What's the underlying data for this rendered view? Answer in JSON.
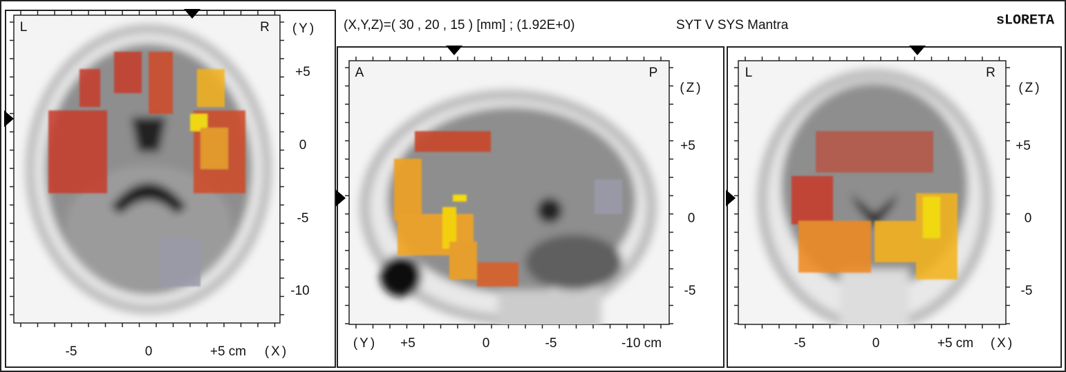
{
  "header": {
    "coordinates": "(X,Y,Z)=( 30 , 20 , 15 ) [mm] ; (1.92E+0)",
    "subject": "SYT V SYS Mantra",
    "logo": "sLORETA"
  },
  "panels": [
    {
      "orientation_left": "L",
      "orientation_right": "R",
      "vertical_axis_label": "(Y)",
      "vertical_ticks": [
        "+5",
        "0",
        "-5",
        "-10"
      ],
      "horizontal_axis_label": "(X)",
      "horizontal_ticks": [
        "-5",
        "0",
        "+5 cm"
      ]
    },
    {
      "orientation_left": "A",
      "orientation_right": "P",
      "vertical_axis_label": "(Z)",
      "vertical_ticks": [
        "+5",
        "0",
        "-5"
      ],
      "horizontal_axis_label": "(Y)",
      "horizontal_ticks": [
        "+5",
        "0",
        "-5",
        "-10 cm"
      ]
    },
    {
      "orientation_left": "L",
      "orientation_right": "R",
      "vertical_axis_label": "(Z)",
      "vertical_ticks": [
        "+5",
        "0",
        "-5"
      ],
      "horizontal_axis_label": "(X)",
      "horizontal_ticks": [
        "-5",
        "0",
        "+5 cm"
      ]
    }
  ]
}
